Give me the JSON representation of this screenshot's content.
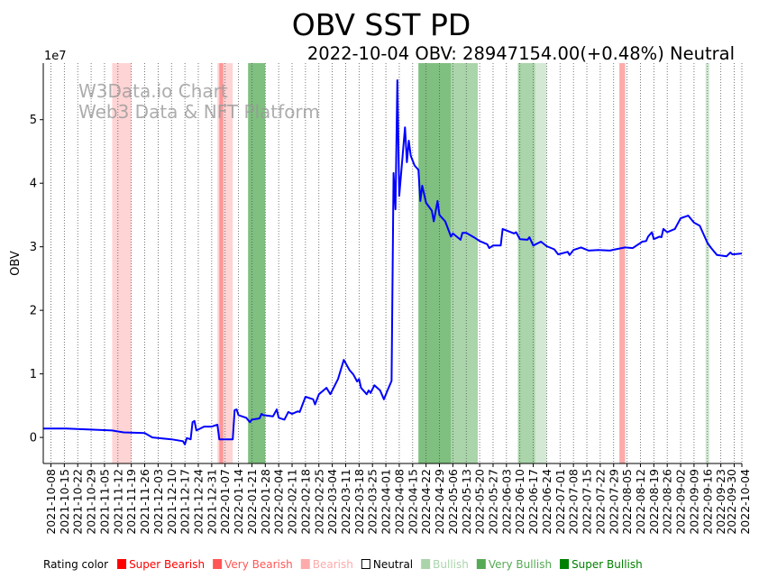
{
  "chart_data": {
    "type": "line",
    "title": "OBV SST PD",
    "subtitle": "2022-10-04 OBV: 28947154.00(+0.48%) Neutral",
    "watermark": [
      "W3Data.io Chart",
      "Web3 Data & NFT Platform"
    ],
    "xlabel": "",
    "ylabel": "OBV",
    "y_scale_label": "1e7",
    "y_scale": 10000000,
    "xlim": [
      "2021-10-04",
      "2022-10-04"
    ],
    "ylim": [
      -0.41,
      5.89
    ],
    "yticks": [
      0,
      1,
      2,
      3,
      4,
      5
    ],
    "xticks": [
      "2021-10-08",
      "2021-10-15",
      "2021-10-22",
      "2021-10-29",
      "2021-11-05",
      "2021-11-12",
      "2021-11-19",
      "2021-11-26",
      "2021-12-03",
      "2021-12-10",
      "2021-12-17",
      "2021-12-24",
      "2021-12-31",
      "2022-01-07",
      "2022-01-14",
      "2022-01-21",
      "2022-01-28",
      "2022-02-04",
      "2022-02-11",
      "2022-02-18",
      "2022-02-25",
      "2022-03-04",
      "2022-03-11",
      "2022-03-18",
      "2022-03-25",
      "2022-04-01",
      "2022-04-08",
      "2022-04-15",
      "2022-04-22",
      "2022-04-29",
      "2022-05-06",
      "2022-05-13",
      "2022-05-20",
      "2022-05-27",
      "2022-06-03",
      "2022-06-10",
      "2022-06-17",
      "2022-06-24",
      "2022-07-01",
      "2022-07-08",
      "2022-07-15",
      "2022-07-22",
      "2022-07-29",
      "2022-08-05",
      "2022-08-12",
      "2022-08-19",
      "2022-08-26",
      "2022-09-02",
      "2022-09-09",
      "2022-09-16",
      "2022-09-23",
      "2022-09-30",
      "2022-10-04"
    ],
    "grid": "x-dotted",
    "series": [
      {
        "name": "OBV",
        "color": "#0000ff",
        "points": [
          [
            "2021-10-04",
            0.14
          ],
          [
            "2021-10-16",
            0.14
          ],
          [
            "2021-11-09",
            0.11
          ],
          [
            "2021-11-15",
            0.08
          ],
          [
            "2021-11-26",
            0.07
          ],
          [
            "2021-11-30",
            0.0
          ],
          [
            "2021-12-10",
            -0.03
          ],
          [
            "2021-12-16",
            -0.06
          ],
          [
            "2021-12-17",
            -0.11
          ],
          [
            "2021-12-18",
            -0.01
          ],
          [
            "2021-12-20",
            -0.03
          ],
          [
            "2021-12-21",
            0.24
          ],
          [
            "2021-12-22",
            0.26
          ],
          [
            "2021-12-23",
            0.11
          ],
          [
            "2021-12-27",
            0.17
          ],
          [
            "2021-12-31",
            0.17
          ],
          [
            "2022-01-03",
            0.2
          ],
          [
            "2022-01-04",
            -0.03
          ],
          [
            "2022-01-11",
            -0.03
          ],
          [
            "2022-01-12",
            0.43
          ],
          [
            "2022-01-13",
            0.44
          ],
          [
            "2022-01-14",
            0.35
          ],
          [
            "2022-01-18",
            0.31
          ],
          [
            "2022-01-20",
            0.24
          ],
          [
            "2022-01-21",
            0.28
          ],
          [
            "2022-01-25",
            0.3
          ],
          [
            "2022-01-26",
            0.37
          ],
          [
            "2022-01-27",
            0.35
          ],
          [
            "2022-02-01",
            0.33
          ],
          [
            "2022-02-03",
            0.44
          ],
          [
            "2022-02-04",
            0.31
          ],
          [
            "2022-02-07",
            0.28
          ],
          [
            "2022-02-09",
            0.4
          ],
          [
            "2022-02-11",
            0.37
          ],
          [
            "2022-02-14",
            0.41
          ],
          [
            "2022-02-15",
            0.4
          ],
          [
            "2022-02-18",
            0.64
          ],
          [
            "2022-02-22",
            0.6
          ],
          [
            "2022-02-23",
            0.52
          ],
          [
            "2022-02-25",
            0.68
          ],
          [
            "2022-03-01",
            0.78
          ],
          [
            "2022-03-03",
            0.68
          ],
          [
            "2022-03-07",
            0.92
          ],
          [
            "2022-03-10",
            1.22
          ],
          [
            "2022-03-13",
            1.06
          ],
          [
            "2022-03-15",
            0.99
          ],
          [
            "2022-03-17",
            0.88
          ],
          [
            "2022-03-18",
            0.92
          ],
          [
            "2022-03-19",
            0.78
          ],
          [
            "2022-03-22",
            0.68
          ],
          [
            "2022-03-23",
            0.74
          ],
          [
            "2022-03-24",
            0.7
          ],
          [
            "2022-03-26",
            0.82
          ],
          [
            "2022-03-29",
            0.74
          ],
          [
            "2022-03-31",
            0.6
          ],
          [
            "2022-04-02",
            0.75
          ],
          [
            "2022-04-04",
            0.89
          ],
          [
            "2022-04-05",
            4.16
          ],
          [
            "2022-04-06",
            3.59
          ],
          [
            "2022-04-07",
            5.62
          ],
          [
            "2022-04-08",
            3.8
          ],
          [
            "2022-04-11",
            4.88
          ],
          [
            "2022-04-12",
            4.33
          ],
          [
            "2022-04-13",
            4.67
          ],
          [
            "2022-04-14",
            4.43
          ],
          [
            "2022-04-16",
            4.28
          ],
          [
            "2022-04-18",
            4.21
          ],
          [
            "2022-04-19",
            3.72
          ],
          [
            "2022-04-20",
            3.96
          ],
          [
            "2022-04-22",
            3.69
          ],
          [
            "2022-04-25",
            3.57
          ],
          [
            "2022-04-26",
            3.4
          ],
          [
            "2022-04-28",
            3.72
          ],
          [
            "2022-04-29",
            3.5
          ],
          [
            "2022-05-02",
            3.4
          ],
          [
            "2022-05-05",
            3.16
          ],
          [
            "2022-05-06",
            3.21
          ],
          [
            "2022-05-10",
            3.11
          ],
          [
            "2022-05-11",
            3.22
          ],
          [
            "2022-05-13",
            3.22
          ],
          [
            "2022-05-17",
            3.15
          ],
          [
            "2022-05-20",
            3.09
          ],
          [
            "2022-05-24",
            3.04
          ],
          [
            "2022-05-25",
            2.98
          ],
          [
            "2022-05-27",
            3.02
          ],
          [
            "2022-05-31",
            3.02
          ],
          [
            "2022-06-01",
            3.28
          ],
          [
            "2022-06-07",
            3.21
          ],
          [
            "2022-06-08",
            3.23
          ],
          [
            "2022-06-10",
            3.12
          ],
          [
            "2022-06-14",
            3.11
          ],
          [
            "2022-06-15",
            3.15
          ],
          [
            "2022-06-17",
            3.02
          ],
          [
            "2022-06-21",
            3.08
          ],
          [
            "2022-06-24",
            3.01
          ],
          [
            "2022-06-28",
            2.96
          ],
          [
            "2022-06-30",
            2.88
          ],
          [
            "2022-07-05",
            2.92
          ],
          [
            "2022-07-06",
            2.87
          ],
          [
            "2022-07-08",
            2.95
          ],
          [
            "2022-07-12",
            2.99
          ],
          [
            "2022-07-16",
            2.94
          ],
          [
            "2022-07-21",
            2.95
          ],
          [
            "2022-07-27",
            2.94
          ],
          [
            "2022-07-30",
            2.96
          ],
          [
            "2022-08-04",
            2.99
          ],
          [
            "2022-08-08",
            2.98
          ],
          [
            "2022-08-13",
            3.08
          ],
          [
            "2022-08-15",
            3.09
          ],
          [
            "2022-08-16",
            3.16
          ],
          [
            "2022-08-18",
            3.23
          ],
          [
            "2022-08-19",
            3.12
          ],
          [
            "2022-08-22",
            3.16
          ],
          [
            "2022-08-23",
            3.15
          ],
          [
            "2022-08-24",
            3.28
          ],
          [
            "2022-08-26",
            3.23
          ],
          [
            "2022-08-30",
            3.28
          ],
          [
            "2022-09-02",
            3.45
          ],
          [
            "2022-09-06",
            3.49
          ],
          [
            "2022-09-09",
            3.38
          ],
          [
            "2022-09-12",
            3.33
          ],
          [
            "2022-09-16",
            3.06
          ],
          [
            "2022-09-18",
            2.98
          ],
          [
            "2022-09-21",
            2.87
          ],
          [
            "2022-09-26",
            2.85
          ],
          [
            "2022-09-28",
            2.91
          ],
          [
            "2022-09-29",
            2.88
          ],
          [
            "2022-10-04",
            2.8947154
          ]
        ]
      }
    ],
    "rating_bands": [
      {
        "start": "2021-11-09",
        "end": "2021-11-19",
        "rating": "Bearish"
      },
      {
        "start": "2022-01-03",
        "end": "2022-01-11",
        "rating": "Bearish"
      },
      {
        "start": "2022-01-04",
        "end": "2022-01-06",
        "rating": "Very Bearish"
      },
      {
        "start": "2022-01-19",
        "end": "2022-01-28",
        "rating": "Super Bullish"
      },
      {
        "start": "2022-04-18",
        "end": "2022-05-05",
        "rating": "Super Bullish"
      },
      {
        "start": "2022-05-05",
        "end": "2022-05-19",
        "rating": "Very Bullish"
      },
      {
        "start": "2022-06-09",
        "end": "2022-06-18",
        "rating": "Very Bullish"
      },
      {
        "start": "2022-06-18",
        "end": "2022-06-24",
        "rating": "Bullish"
      },
      {
        "start": "2022-08-01",
        "end": "2022-08-04",
        "rating": "Very Bearish"
      },
      {
        "start": "2022-09-15",
        "end": "2022-09-17",
        "rating": "Bullish"
      }
    ],
    "legend": {
      "title": "Rating color",
      "placement": "bottom",
      "items": [
        {
          "label": "Super Bearish",
          "color": "#ff0000"
        },
        {
          "label": "Very Bearish",
          "color": "#ff5555"
        },
        {
          "label": "Bearish",
          "color": "#ffaaaa"
        },
        {
          "label": "Neutral",
          "color": "#000000"
        },
        {
          "label": "Bullish",
          "color": "#aad4aa"
        },
        {
          "label": "Very Bullish",
          "color": "#55aa55"
        },
        {
          "label": "Super Bullish",
          "color": "#008000"
        }
      ]
    }
  }
}
